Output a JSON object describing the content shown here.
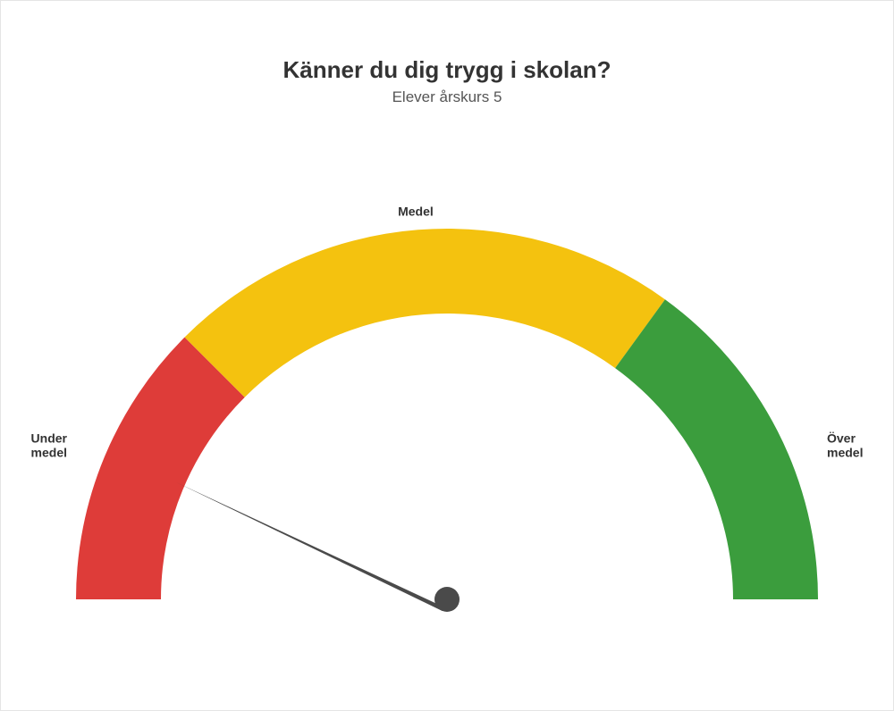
{
  "title": "Känner du dig trygg i skolan?",
  "subtitle": "Elever årskurs 5",
  "gauge": {
    "type": "gauge",
    "min": 0,
    "max": 100,
    "value": 13,
    "outer_radius": 415,
    "inner_radius": 320,
    "needle_length": 330,
    "needle_base_half_width": 14,
    "needle_color": "#4a4a4a",
    "background_color": "#ffffff",
    "segments": [
      {
        "from": 0,
        "to": 25,
        "color": "#de3c39",
        "label": "Under\nmedel",
        "label_pos": "left"
      },
      {
        "from": 25,
        "to": 70,
        "color": "#f4c20f",
        "label": "Medel",
        "label_pos": "top"
      },
      {
        "from": 70,
        "to": 100,
        "color": "#3b9d3d",
        "label": "Över\nmedel",
        "label_pos": "right"
      }
    ],
    "label_fontsize": 14,
    "label_fontweight": 700,
    "title_fontsize": 26,
    "subtitle_fontsize": 17
  }
}
